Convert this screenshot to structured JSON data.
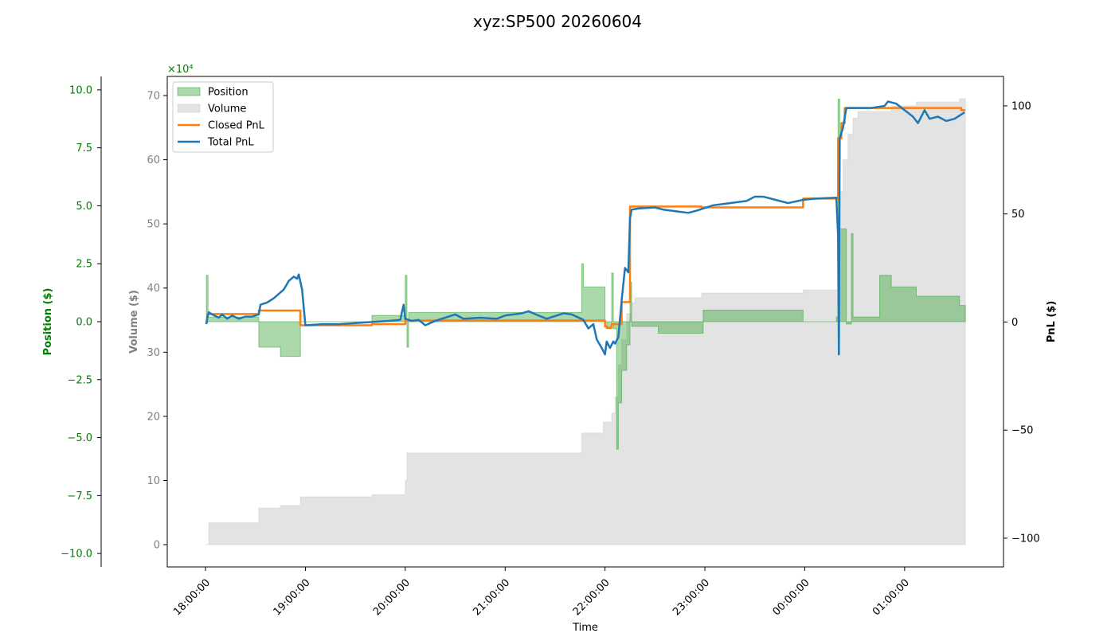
{
  "chart_data": {
    "type": "line",
    "title": "xyz:SP500 20260604",
    "xlabel": "Time",
    "ylabel": "Volume ($)",
    "y2label": "PnL ($)",
    "y3label": "Position ($)",
    "y_offset_label": "×10⁴",
    "xlim": [
      "17:37:00",
      "01:59:24"
    ],
    "xticks": [
      "18:00:00",
      "19:00:00",
      "20:00:00",
      "21:00:00",
      "22:00:00",
      "23:00:00",
      "00:00:00",
      "01:00:00"
    ],
    "ylim": [
      -3.47,
      72.98
    ],
    "yticks": [
      0,
      10,
      20,
      30,
      40,
      50,
      60,
      70
    ],
    "y2lim": [
      -113.3,
      113.6
    ],
    "y2ticks": [
      {
        "value": -100,
        "label": "−100"
      },
      {
        "value": -50,
        "label": "−50"
      },
      0,
      50,
      100
    ],
    "y3lim": [
      -10.58,
      10.58
    ],
    "y3ticks": [
      {
        "value": -10,
        "label": "−10.0"
      },
      {
        "value": -7.5,
        "label": "−7.5"
      },
      {
        "value": -5,
        "label": "−5.0"
      },
      {
        "value": -2.5,
        "label": "−2.5"
      },
      {
        "value": 0,
        "label": "0.0"
      },
      {
        "value": 2.5,
        "label": "2.5"
      },
      {
        "value": 5,
        "label": "5.0"
      },
      {
        "value": 7.5,
        "label": "7.5"
      },
      {
        "value": 10,
        "label": "10.0"
      }
    ],
    "legend": "upper left",
    "series": [
      {
        "name": "Position",
        "color": "#2ca02c",
        "kind": "step-fill",
        "axis": "y3",
        "x": [
          "18:00:00",
          "18:00:30",
          "18:01:30",
          "18:32:00",
          "18:45:00",
          "18:57:00",
          "19:40:00",
          "20:00:00",
          "20:01:00",
          "20:02:00",
          "21:46:00",
          "21:47:00",
          "22:00:00",
          "22:01:00",
          "22:04:00",
          "22:05:00",
          "22:07:00",
          "22:08:00",
          "22:10:00",
          "22:13:00",
          "22:15:00",
          "22:16:00",
          "22:32:00",
          "22:59:00",
          "23:59:00",
          "00:19:00",
          "00:20:00",
          "00:21:00",
          "00:25:00",
          "00:28:00",
          "00:29:00",
          "00:45:00",
          "00:52:00",
          "01:07:00",
          "01:33:00",
          "01:36:30"
        ],
        "values": [
          0,
          2,
          0.2,
          -1.1,
          -1.5,
          0,
          0.27,
          2,
          -1.1,
          0.4,
          2.5,
          1.5,
          0,
          -0.3,
          2.1,
          -0.3,
          -5.5,
          -3.5,
          -2.1,
          -1,
          1.7,
          -0.2,
          -0.5,
          0.5,
          0,
          0.2,
          9.6,
          4,
          -0.1,
          3.8,
          0.2,
          2,
          1.5,
          1.1,
          0.7,
          0.7
        ]
      },
      {
        "name": "Volume",
        "color": "#cccccc",
        "kind": "step-fill",
        "axis": "y",
        "x": [
          "18:00:00",
          "18:02:00",
          "18:32:00",
          "18:45:00",
          "18:57:00",
          "19:40:00",
          "20:00:00",
          "20:01:00",
          "21:46:00",
          "21:59:00",
          "22:04:00",
          "22:06:00",
          "22:08:00",
          "22:10:00",
          "22:13:00",
          "22:16:00",
          "22:18:00",
          "22:58:00",
          "23:59:00",
          "00:20:00",
          "00:21:00",
          "00:23:00",
          "00:26:00",
          "00:29:00",
          "00:32:00",
          "00:52:00",
          "01:07:00",
          "01:33:00",
          "01:36:30"
        ],
        "values": [
          0,
          3.4,
          5.7,
          6.1,
          7.45,
          7.8,
          10,
          14.3,
          17.4,
          19.1,
          20.5,
          23,
          28,
          32,
          36,
          37.7,
          38.5,
          39.2,
          39.7,
          45,
          55,
          60,
          64,
          66.5,
          67.5,
          68.4,
          69,
          69.5,
          69.5
        ]
      },
      {
        "name": "Closed PnL",
        "color": "#ff7f0e",
        "kind": "step",
        "axis": "y2",
        "x": [
          "18:00:00",
          "18:01:00",
          "18:32:00",
          "18:57:00",
          "19:40:00",
          "20:00:00",
          "22:00:00",
          "22:01:00",
          "22:04:00",
          "22:10:00",
          "22:15:00",
          "22:58:00",
          "23:59:00",
          "00:20:00",
          "00:22:00",
          "00:24:00",
          "01:34:00",
          "01:36:30"
        ],
        "values": [
          0,
          3.7,
          5.3,
          -1.5,
          -1,
          0.7,
          -2,
          -2.6,
          -1,
          9.2,
          53.4,
          53,
          57.1,
          85,
          92,
          99,
          98,
          98
        ]
      },
      {
        "name": "Total PnL",
        "color": "#1f77b4",
        "kind": "line",
        "axis": "y2",
        "x": [
          "18:00:30",
          "18:01:00",
          "18:02:00",
          "18:04:00",
          "18:08:00",
          "18:10:00",
          "18:13:00",
          "18:16:00",
          "18:20:00",
          "18:24:00",
          "18:28:00",
          "18:32:00",
          "18:33:00",
          "18:37:00",
          "18:41:00",
          "18:44:00",
          "18:47:00",
          "18:50:00",
          "18:53:00",
          "18:55:00",
          "18:56:00",
          "18:58:00",
          "19:00:00",
          "19:10:00",
          "19:20:00",
          "19:30:00",
          "19:40:00",
          "19:50:00",
          "19:57:00",
          "19:59:00",
          "20:00:00",
          "20:04:00",
          "20:08:00",
          "20:12:00",
          "20:18:00",
          "20:22:00",
          "20:30:00",
          "20:35:00",
          "20:45:00",
          "20:55:00",
          "21:00:00",
          "21:10:00",
          "21:14:00",
          "21:20:00",
          "21:25:00",
          "21:35:00",
          "21:40:00",
          "21:47:00",
          "21:50:00",
          "21:53:00",
          "21:55:00",
          "21:58:00",
          "22:00:00",
          "22:01:00",
          "22:03:00",
          "22:05:00",
          "22:06:00",
          "22:08:00",
          "22:10:00",
          "22:12:00",
          "22:14:00",
          "22:15:00",
          "22:16:00",
          "22:20:00",
          "22:30:00",
          "22:35:00",
          "22:45:00",
          "22:50:00",
          "22:55:00",
          "23:05:00",
          "23:15:00",
          "23:25:00",
          "23:30:00",
          "23:35:00",
          "23:45:00",
          "23:50:00",
          "23:59:00",
          "00:05:00",
          "00:19:00",
          "00:20:00",
          "00:20:30",
          "00:21:00",
          "00:23:00",
          "00:25:00",
          "00:40:00",
          "00:48:00",
          "00:50:00",
          "00:55:00",
          "01:00:00",
          "01:05:00",
          "01:08:00",
          "01:12:00",
          "01:15:00",
          "01:20:00",
          "01:25:00",
          "01:30:00",
          "01:34:00",
          "01:36:00"
        ],
        "values": [
          -1,
          1.8,
          4.5,
          3.5,
          2,
          3.5,
          1.5,
          3,
          1.5,
          2.5,
          2.5,
          3.5,
          8,
          9,
          11,
          13,
          15,
          19,
          21,
          20,
          22,
          15,
          -1.5,
          -1,
          -1,
          -0.5,
          0,
          0.5,
          1,
          8,
          1.5,
          0.5,
          1,
          -1.5,
          0.5,
          1.5,
          3.5,
          1.5,
          2,
          1.5,
          3,
          4,
          5,
          3,
          1.5,
          4,
          3.5,
          1,
          -3,
          -1,
          -8,
          -12,
          -15,
          -9,
          -12,
          -9,
          -10,
          -7,
          10,
          25,
          23,
          48,
          52,
          52.5,
          53,
          52,
          51,
          50.5,
          51.5,
          54,
          55,
          56,
          58,
          58,
          56,
          55,
          56.5,
          57,
          57.5,
          40,
          -15,
          85,
          90,
          99,
          99,
          100,
          102,
          101,
          98,
          95,
          92,
          98,
          94,
          95,
          93,
          94,
          96,
          97
        ]
      }
    ]
  }
}
